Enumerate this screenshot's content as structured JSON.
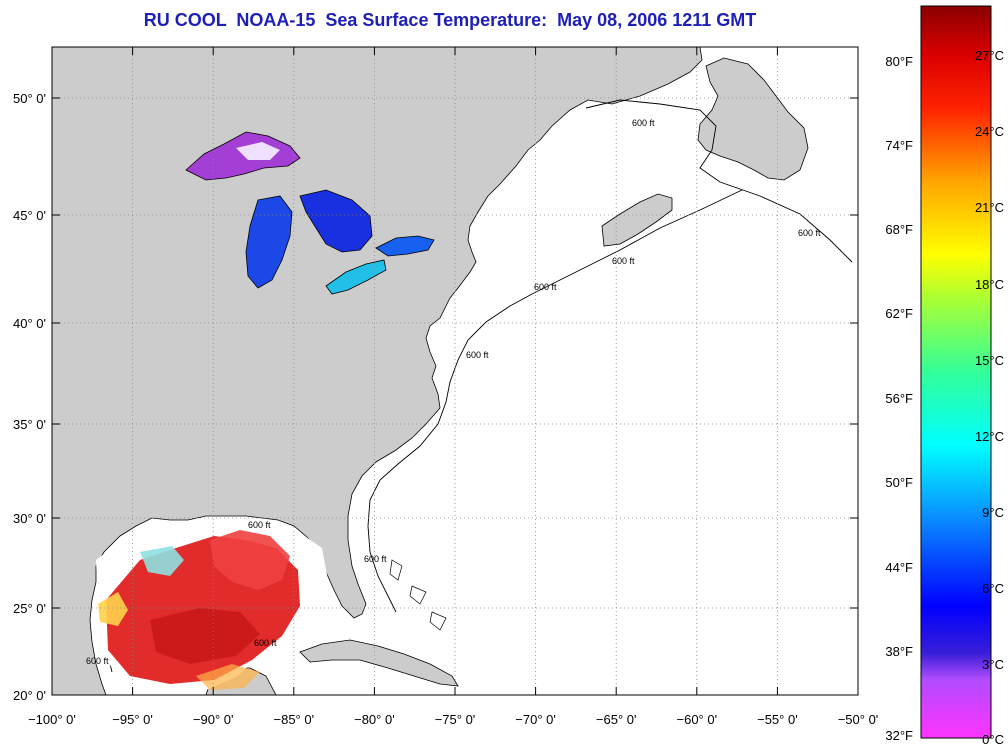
{
  "title": "RU COOL  NOAA-15  Sea Surface Temperature:  May 08, 2006 1211 GMT",
  "map": {
    "lon_range": [
      -100,
      -50
    ],
    "lat_range": [
      20,
      52.5
    ],
    "lon_ticks": [
      {
        "value": -100,
        "label": "−100° 0'"
      },
      {
        "value": -95,
        "label": "−95° 0'"
      },
      {
        "value": -90,
        "label": "−90° 0'"
      },
      {
        "value": -85,
        "label": "−85° 0'"
      },
      {
        "value": -80,
        "label": "−80° 0'"
      },
      {
        "value": -75,
        "label": "−75° 0'"
      },
      {
        "value": -70,
        "label": "−70° 0'"
      },
      {
        "value": -65,
        "label": "−65° 0'"
      },
      {
        "value": -60,
        "label": "−60° 0'"
      },
      {
        "value": -55,
        "label": "−55° 0'"
      },
      {
        "value": -50,
        "label": "−50° 0'"
      }
    ],
    "lat_ticks": [
      {
        "value": 50,
        "label": "50° 0'"
      },
      {
        "value": 45,
        "label": "45° 0'"
      },
      {
        "value": 40,
        "label": "40° 0'"
      },
      {
        "value": 35,
        "label": "35° 0'"
      },
      {
        "value": 30,
        "label": "30° 0'"
      },
      {
        "value": 25,
        "label": "25° 0'"
      },
      {
        "value": 20,
        "label": "20° 0'"
      }
    ],
    "grid": "dotted",
    "land_color": "#cccccc",
    "ocean_color": "#ffffff",
    "contour_label": "600 ft"
  },
  "colorbar": {
    "fahrenheit_labels": [
      "80°F",
      "74°F",
      "68°F",
      "62°F",
      "56°F",
      "50°F",
      "44°F",
      "38°F",
      "32°F"
    ],
    "celsius_labels": [
      "27°C",
      "24°C",
      "21°C",
      "18°C",
      "15°C",
      "12°C",
      "9°C",
      "6°C",
      "3°C",
      "0°C"
    ],
    "colors": [
      "#8b0000",
      "#ff0000",
      "#ff8c00",
      "#ffff00",
      "#7fff00",
      "#00ff80",
      "#00ffff",
      "#0080ff",
      "#0000ff",
      "#8000ff",
      "#ff00ff"
    ]
  }
}
